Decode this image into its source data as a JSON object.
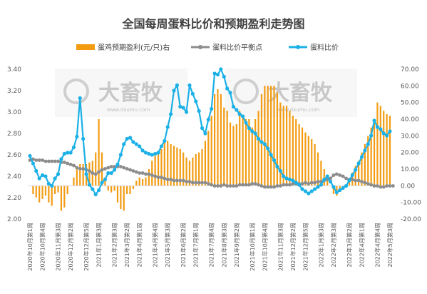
{
  "chart_data": {
    "type": "bar+line",
    "title": "全国每周蛋料比价和预期盈利走势图",
    "legend": [
      "蛋鸡预期盈利(元/只)右",
      "蛋料比价平衡点",
      "蛋料比价"
    ],
    "legend_position": "top",
    "colors": {
      "bar": "#F39C12",
      "balance": "#8C8C8C",
      "ratio": "#1BB0E6"
    },
    "left_axis": {
      "ticks": [
        "2.00",
        "2.20",
        "2.40",
        "2.60",
        "2.80",
        "3.00",
        "3.20",
        "3.40"
      ],
      "ylim": [
        2.0,
        3.4
      ]
    },
    "right_axis": {
      "ticks": [
        "-20.00",
        "-10.00",
        "0.00",
        "10.00",
        "20.00",
        "30.00",
        "40.00",
        "50.00",
        "60.00",
        "70.00"
      ],
      "ylim": [
        -20,
        70
      ]
    },
    "x_tick_labels": [
      "2020年10月第1周",
      "2020年10月第4周",
      "2020年11月第3周",
      "2020年12月第2周",
      "2020年12月第5周",
      "2021年1月第3周",
      "2021年2月第3周",
      "2021年3月第2周",
      "2021年4月第1周",
      "2021年4月第4周",
      "2021年5月第3周",
      "2021年6月第2周",
      "2021年7月第1周",
      "2021年7月第4周",
      "2021年8月第3周",
      "2021年9月第2周",
      "2021年10月第1周",
      "2021年10月第4周",
      "2021年11月第3周",
      "2021年12月第2周",
      "2021年12月第5周",
      "2022年1月第3周",
      "2022年2月第3周",
      "2022年3月第2周",
      "2022年4月第1周",
      "2022年4月第4周",
      "2022年5月第3周"
    ],
    "series": [
      {
        "name": "蛋鸡预期盈利(元/只)右",
        "axis": "right",
        "values": [
          0,
          -5,
          -7,
          -10,
          -8,
          -6,
          -10,
          -12,
          -5,
          -4,
          -15,
          -13,
          -5,
          0,
          5,
          10,
          13,
          13,
          13,
          14,
          15,
          20,
          40,
          20,
          5,
          -3,
          -4,
          -3,
          -10,
          -14,
          -15,
          -5,
          -5,
          -2,
          3,
          5,
          4,
          5,
          10,
          15,
          18,
          20,
          22,
          27,
          27,
          25,
          24,
          23,
          22,
          20,
          17,
          15,
          17,
          19,
          20,
          22,
          27,
          33,
          42,
          55,
          58,
          55,
          47,
          45,
          38,
          36,
          37,
          45,
          42,
          40,
          40,
          35,
          40,
          45,
          55,
          60,
          60,
          60,
          60,
          56,
          50,
          48,
          48,
          45,
          42,
          40,
          37,
          35,
          32,
          30,
          28,
          25,
          20,
          15,
          10,
          5,
          0,
          -5,
          -6,
          -2,
          -1,
          0,
          3,
          8,
          12,
          15,
          20,
          25,
          30,
          35,
          40,
          50,
          48,
          45,
          43,
          42
        ]
      },
      {
        "name": "蛋料比价平衡点",
        "axis": "left",
        "values": [
          2.55,
          2.56,
          2.55,
          2.55,
          2.55,
          2.54,
          2.54,
          2.54,
          2.54,
          2.54,
          2.53,
          2.53,
          2.52,
          2.51,
          2.5,
          2.48,
          2.47,
          2.47,
          2.46,
          2.45,
          2.43,
          2.42,
          2.44,
          2.46,
          2.47,
          2.48,
          2.49,
          2.49,
          2.49,
          2.49,
          2.48,
          2.47,
          2.46,
          2.45,
          2.44,
          2.43,
          2.43,
          2.42,
          2.42,
          2.41,
          2.4,
          2.39,
          2.39,
          2.38,
          2.37,
          2.37,
          2.36,
          2.36,
          2.36,
          2.36,
          2.35,
          2.35,
          2.34,
          2.34,
          2.34,
          2.34,
          2.34,
          2.33,
          2.32,
          2.31,
          2.31,
          2.31,
          2.32,
          2.31,
          2.31,
          2.31,
          2.31,
          2.32,
          2.32,
          2.32,
          2.32,
          2.33,
          2.33,
          2.32,
          2.31,
          2.3,
          2.3,
          2.3,
          2.3,
          2.31,
          2.31,
          2.32,
          2.32,
          2.32,
          2.33,
          2.33,
          2.33,
          2.33,
          2.34,
          2.33,
          2.34,
          2.34,
          2.35,
          2.35,
          2.36,
          2.37,
          2.38,
          2.41,
          2.42,
          2.41,
          2.4,
          2.38,
          2.37,
          2.37,
          2.36,
          2.36,
          2.35,
          2.34,
          2.33,
          2.32,
          2.31,
          2.31,
          2.3,
          2.3,
          2.31,
          2.31,
          2.31
        ]
      },
      {
        "name": "蛋料比价",
        "axis": "left",
        "values": [
          2.59,
          2.52,
          2.45,
          2.38,
          2.41,
          2.4,
          2.33,
          2.31,
          2.38,
          2.42,
          2.56,
          2.61,
          2.62,
          2.62,
          2.67,
          2.77,
          3.13,
          2.75,
          2.42,
          2.32,
          2.28,
          2.23,
          2.27,
          2.34,
          2.37,
          2.43,
          2.43,
          2.46,
          2.51,
          2.6,
          2.7,
          2.75,
          2.76,
          2.72,
          2.7,
          2.68,
          2.64,
          2.62,
          2.61,
          2.6,
          2.61,
          2.62,
          2.68,
          2.73,
          2.86,
          2.98,
          3.2,
          3.25,
          3.05,
          3.04,
          3.0,
          3.25,
          3.17,
          3.1,
          3.01,
          2.85,
          2.8,
          2.93,
          3.03,
          3.36,
          3.35,
          3.4,
          3.33,
          3.22,
          3.18,
          3.05,
          3.02,
          2.98,
          2.96,
          2.9,
          2.85,
          2.82,
          2.8,
          2.75,
          2.72,
          2.7,
          2.66,
          2.6,
          2.55,
          2.49,
          2.45,
          2.4,
          2.38,
          2.37,
          2.36,
          2.34,
          2.32,
          2.28,
          2.26,
          2.24,
          2.26,
          2.28,
          2.3,
          2.32,
          2.37,
          2.4,
          2.35,
          2.3,
          2.25,
          2.27,
          2.29,
          2.31,
          2.36,
          2.41,
          2.46,
          2.52,
          2.58,
          2.64,
          2.7,
          2.78,
          2.92,
          2.86,
          2.84,
          2.8,
          2.78,
          2.82
        ]
      }
    ],
    "watermark": {
      "brand": "大畜牧",
      "url": "www.dxumu.com"
    }
  }
}
